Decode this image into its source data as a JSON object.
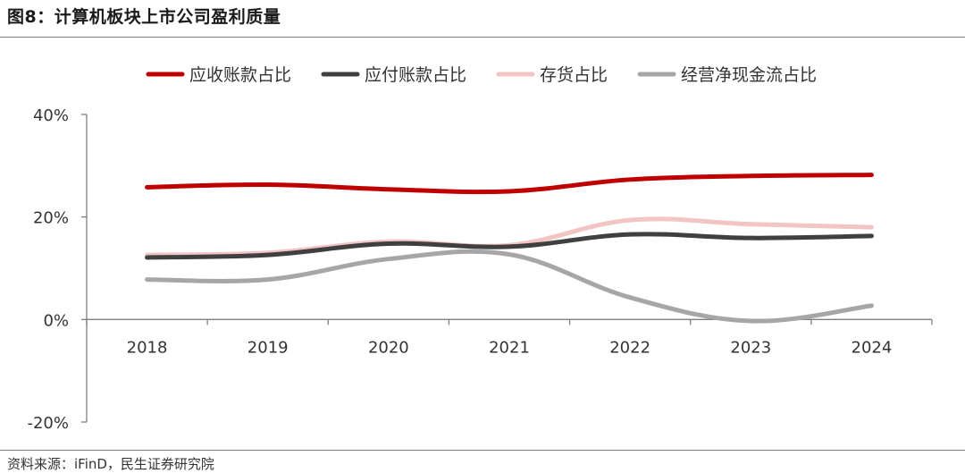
{
  "header": {
    "title": "图8：计算机板块上市公司盈利质量"
  },
  "footer": {
    "source": "资料来源：iFinD，民生证券研究院"
  },
  "chart_data": {
    "type": "line",
    "categories": [
      "2018",
      "2019",
      "2020",
      "2021",
      "2022",
      "2023",
      "2024"
    ],
    "ylim": [
      -20,
      40
    ],
    "yticks": [
      -20,
      0,
      20,
      40
    ],
    "ytick_labels": [
      "-20%",
      "0%",
      "20%",
      "40%"
    ],
    "y_unit": "%",
    "grid": false,
    "legend_position": "top",
    "series": [
      {
        "name": "应收账款占比",
        "color": "#C00000",
        "values": [
          25.8,
          26.3,
          25.4,
          25.0,
          27.3,
          28.0,
          28.2
        ]
      },
      {
        "name": "应付账款占比",
        "color": "#404040",
        "values": [
          12.1,
          12.6,
          14.8,
          14.2,
          16.6,
          15.9,
          16.3
        ]
      },
      {
        "name": "存货占比",
        "color": "#F2C4C4",
        "values": [
          12.6,
          13.0,
          15.2,
          14.5,
          19.4,
          18.6,
          18.0
        ]
      },
      {
        "name": "经营净现金流占比",
        "color": "#A6A6A6",
        "values": [
          7.8,
          7.8,
          11.8,
          12.7,
          4.3,
          -0.3,
          2.7
        ]
      }
    ]
  }
}
